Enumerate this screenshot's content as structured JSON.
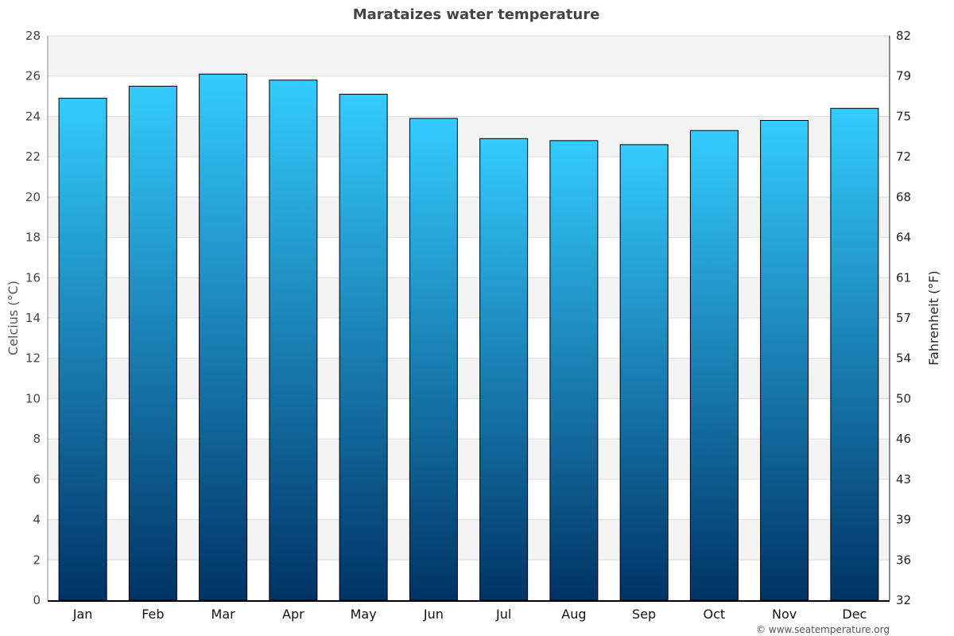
{
  "chart_data": {
    "type": "bar",
    "title": "Marataizes water temperature",
    "ylabel": "Celcius (°C)",
    "ylabel_right": "Fahrenheit (°F)",
    "categories": [
      "Jan",
      "Feb",
      "Mar",
      "Apr",
      "May",
      "Jun",
      "Jul",
      "Aug",
      "Sep",
      "Oct",
      "Nov",
      "Dec"
    ],
    "values": [
      24.9,
      25.5,
      26.1,
      25.8,
      25.1,
      23.9,
      22.9,
      22.8,
      22.6,
      23.3,
      23.8,
      24.4
    ],
    "ylim": [
      0,
      28
    ],
    "yticks": [
      0,
      2,
      4,
      6,
      8,
      10,
      12,
      14,
      16,
      18,
      20,
      22,
      24,
      26,
      28
    ],
    "yticks_right": [
      "32",
      "36",
      "39",
      "43",
      "46",
      "50",
      "54",
      "57",
      "61",
      "64",
      "68",
      "72",
      "75",
      "79",
      "82"
    ],
    "grid": true,
    "colors": {
      "bar_top": "#33ccff",
      "bar_bottom": "#003366",
      "band": "#f3f3f3"
    }
  },
  "footer": {
    "credit": "© www.seatemperature.org"
  }
}
